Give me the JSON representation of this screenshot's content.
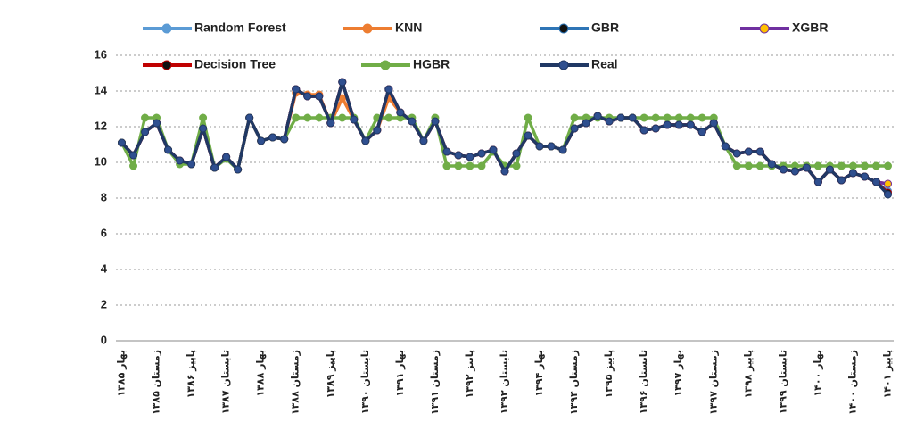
{
  "chart_data": {
    "type": "line",
    "categories": [
      "۱۳۸۵ بهار",
      null,
      null,
      "۱۳۸۵ زمستان",
      null,
      null,
      "۱۳۸۶ پاییز",
      null,
      null,
      "۱۳۸۷ تابستان",
      null,
      null,
      "۱۳۸۸ بهار",
      null,
      null,
      "۱۳۸۸ زمستان",
      null,
      null,
      "۱۳۸۹ پاییز",
      null,
      null,
      "۱۳۹۰ تابستان",
      null,
      null,
      "۱۳۹۱ بهار",
      null,
      null,
      "۱۳۹۱ زمستان",
      null,
      null,
      "۱۳۹۲ پاییز",
      null,
      null,
      "۱۳۹۳ تابستان",
      null,
      null,
      "۱۳۹۴ بهار",
      null,
      null,
      "۱۳۹۴ زمستان",
      null,
      null,
      "۱۳۹۵ پاییز",
      null,
      null,
      "۱۳۹۶ تابستان",
      null,
      null,
      "۱۳۹۷ بهار",
      null,
      null,
      "۱۳۹۷ زمستان",
      null,
      null,
      "۱۳۹۸ پاییز",
      null,
      null,
      "۱۳۹۹ تابستان",
      null,
      null,
      "۱۴۰۰ بهار",
      null,
      null,
      "۱۴۰۰ زمستان",
      null,
      null,
      "۱۴۰۱ پاییز"
    ],
    "series": [
      {
        "name": "Random Forest",
        "color": "#5b9bd5",
        "marker": "#5b9bd5",
        "values": [
          11.1,
          10.4,
          11.7,
          12.2,
          10.7,
          10.1,
          9.9,
          11.9,
          9.7,
          10.3,
          9.6,
          12.5,
          11.2,
          11.4,
          11.3,
          14.1,
          13.7,
          13.7,
          12.2,
          14.5,
          12.4,
          11.2,
          11.8,
          14.1,
          12.8,
          12.3,
          11.2,
          12.3,
          10.6,
          10.4,
          10.3,
          10.5,
          10.7,
          9.5,
          10.5,
          11.5,
          10.9,
          10.9,
          10.7,
          11.9,
          12.2,
          12.6,
          12.3,
          12.5,
          12.5,
          11.8,
          11.9,
          12.1,
          12.1,
          12.1,
          11.7,
          12.2,
          10.9,
          10.5,
          10.6,
          10.6,
          9.9,
          9.6,
          9.5,
          9.7,
          8.9,
          9.6,
          9.0,
          9.4,
          9.2,
          8.9,
          8.4
        ]
      },
      {
        "name": "KNN",
        "color": "#ed7d31",
        "marker": "#ed7d31",
        "values": [
          11.1,
          10.4,
          11.7,
          12.2,
          10.7,
          10.1,
          9.9,
          11.9,
          9.7,
          10.3,
          9.6,
          12.5,
          11.2,
          11.4,
          11.3,
          13.9,
          13.8,
          13.8,
          12.2,
          13.6,
          12.4,
          11.2,
          11.8,
          13.6,
          12.8,
          12.3,
          11.2,
          12.3,
          10.6,
          10.4,
          10.3,
          10.5,
          10.7,
          9.5,
          10.5,
          11.5,
          10.9,
          10.9,
          10.7,
          11.9,
          12.2,
          12.6,
          12.3,
          12.5,
          12.5,
          11.8,
          11.9,
          12.1,
          12.1,
          12.1,
          11.7,
          12.2,
          10.9,
          10.5,
          10.6,
          10.6,
          9.9,
          9.6,
          9.5,
          9.7,
          8.9,
          9.6,
          9.0,
          9.4,
          9.2,
          8.9,
          8.8
        ]
      },
      {
        "name": "GBR",
        "color": "#2e75b6",
        "marker": "#111111",
        "values": [
          11.1,
          10.4,
          11.7,
          12.2,
          10.7,
          10.1,
          9.9,
          11.9,
          9.7,
          10.3,
          9.6,
          12.5,
          11.2,
          11.4,
          11.3,
          14.1,
          13.7,
          13.7,
          12.2,
          14.5,
          12.4,
          11.2,
          11.8,
          14.1,
          12.8,
          12.3,
          11.2,
          12.3,
          10.6,
          10.4,
          10.3,
          10.5,
          10.7,
          9.5,
          10.5,
          11.5,
          10.9,
          10.9,
          10.7,
          11.9,
          12.2,
          12.6,
          12.3,
          12.5,
          12.5,
          11.8,
          11.9,
          12.1,
          12.1,
          12.1,
          11.7,
          12.2,
          10.9,
          10.5,
          10.6,
          10.6,
          9.9,
          9.6,
          9.5,
          9.7,
          8.9,
          9.6,
          9.0,
          9.4,
          9.2,
          8.9,
          8.3
        ]
      },
      {
        "name": "XGBR",
        "color": "#7030a0",
        "marker": "#ffc000",
        "values": [
          11.1,
          10.4,
          11.7,
          12.2,
          10.7,
          10.1,
          9.9,
          11.9,
          9.7,
          10.3,
          9.6,
          12.5,
          11.2,
          11.4,
          11.3,
          14.1,
          13.7,
          13.7,
          12.2,
          14.5,
          12.4,
          11.2,
          11.8,
          14.1,
          12.8,
          12.3,
          11.2,
          12.3,
          10.6,
          10.4,
          10.3,
          10.5,
          10.7,
          9.5,
          10.5,
          11.5,
          10.9,
          10.9,
          10.7,
          11.9,
          12.2,
          12.6,
          12.3,
          12.5,
          12.5,
          11.8,
          11.9,
          12.1,
          12.1,
          12.1,
          11.7,
          12.2,
          10.9,
          10.5,
          10.6,
          10.6,
          9.9,
          9.6,
          9.5,
          9.7,
          8.9,
          9.6,
          9.0,
          9.4,
          9.2,
          8.9,
          8.8
        ]
      },
      {
        "name": "Decision Tree",
        "color": "#c00000",
        "marker": "#111111",
        "values": [
          11.1,
          10.4,
          11.7,
          12.2,
          10.7,
          10.1,
          9.9,
          11.9,
          9.7,
          10.3,
          9.6,
          12.5,
          11.2,
          11.4,
          11.3,
          14.1,
          13.7,
          13.7,
          12.2,
          14.5,
          12.4,
          11.2,
          11.8,
          14.1,
          12.8,
          12.3,
          11.2,
          12.3,
          10.6,
          10.4,
          10.3,
          10.5,
          10.7,
          9.5,
          10.5,
          11.5,
          10.9,
          10.9,
          10.7,
          11.9,
          12.2,
          12.6,
          12.3,
          12.5,
          12.5,
          11.8,
          11.9,
          12.1,
          12.1,
          12.1,
          11.7,
          12.2,
          10.9,
          10.5,
          10.6,
          10.6,
          9.9,
          9.6,
          9.5,
          9.7,
          8.9,
          9.6,
          9.0,
          9.4,
          9.2,
          8.9,
          8.3
        ]
      },
      {
        "name": "HGBR",
        "color": "#70ad47",
        "marker": "#70ad47",
        "values": [
          11.1,
          9.8,
          12.5,
          12.5,
          10.7,
          9.9,
          9.9,
          12.5,
          9.7,
          10.2,
          9.6,
          12.5,
          11.2,
          11.4,
          11.3,
          12.5,
          12.5,
          12.5,
          12.5,
          12.5,
          12.5,
          11.2,
          12.5,
          12.5,
          12.5,
          12.5,
          11.2,
          12.5,
          9.8,
          9.8,
          9.8,
          9.8,
          10.6,
          9.8,
          9.8,
          12.5,
          10.9,
          10.9,
          10.7,
          12.5,
          12.5,
          12.5,
          12.5,
          12.5,
          12.5,
          12.5,
          12.5,
          12.5,
          12.5,
          12.5,
          12.5,
          12.5,
          10.9,
          9.8,
          9.8,
          9.8,
          9.8,
          9.8,
          9.8,
          9.8,
          9.8,
          9.8,
          9.8,
          9.8,
          9.8,
          9.8,
          9.8
        ]
      },
      {
        "name": "Real",
        "color": "#203864",
        "marker": "#2f4f8f",
        "values": [
          11.1,
          10.4,
          11.7,
          12.2,
          10.7,
          10.1,
          9.9,
          11.9,
          9.7,
          10.3,
          9.6,
          12.5,
          11.2,
          11.4,
          11.3,
          14.1,
          13.7,
          13.7,
          12.2,
          14.5,
          12.4,
          11.2,
          11.8,
          14.1,
          12.8,
          12.3,
          11.2,
          12.3,
          10.6,
          10.4,
          10.3,
          10.5,
          10.7,
          9.5,
          10.5,
          11.5,
          10.9,
          10.9,
          10.7,
          11.9,
          12.2,
          12.6,
          12.3,
          12.5,
          12.5,
          11.8,
          11.9,
          12.1,
          12.1,
          12.1,
          11.7,
          12.2,
          10.9,
          10.5,
          10.6,
          10.6,
          9.9,
          9.6,
          9.5,
          9.7,
          8.9,
          9.6,
          9.0,
          9.4,
          9.2,
          8.9,
          8.2
        ]
      }
    ],
    "ylim": [
      0,
      16
    ],
    "yticks": [
      0,
      2,
      4,
      6,
      8,
      10,
      12,
      14,
      16
    ],
    "grid": true,
    "legend": "top"
  }
}
